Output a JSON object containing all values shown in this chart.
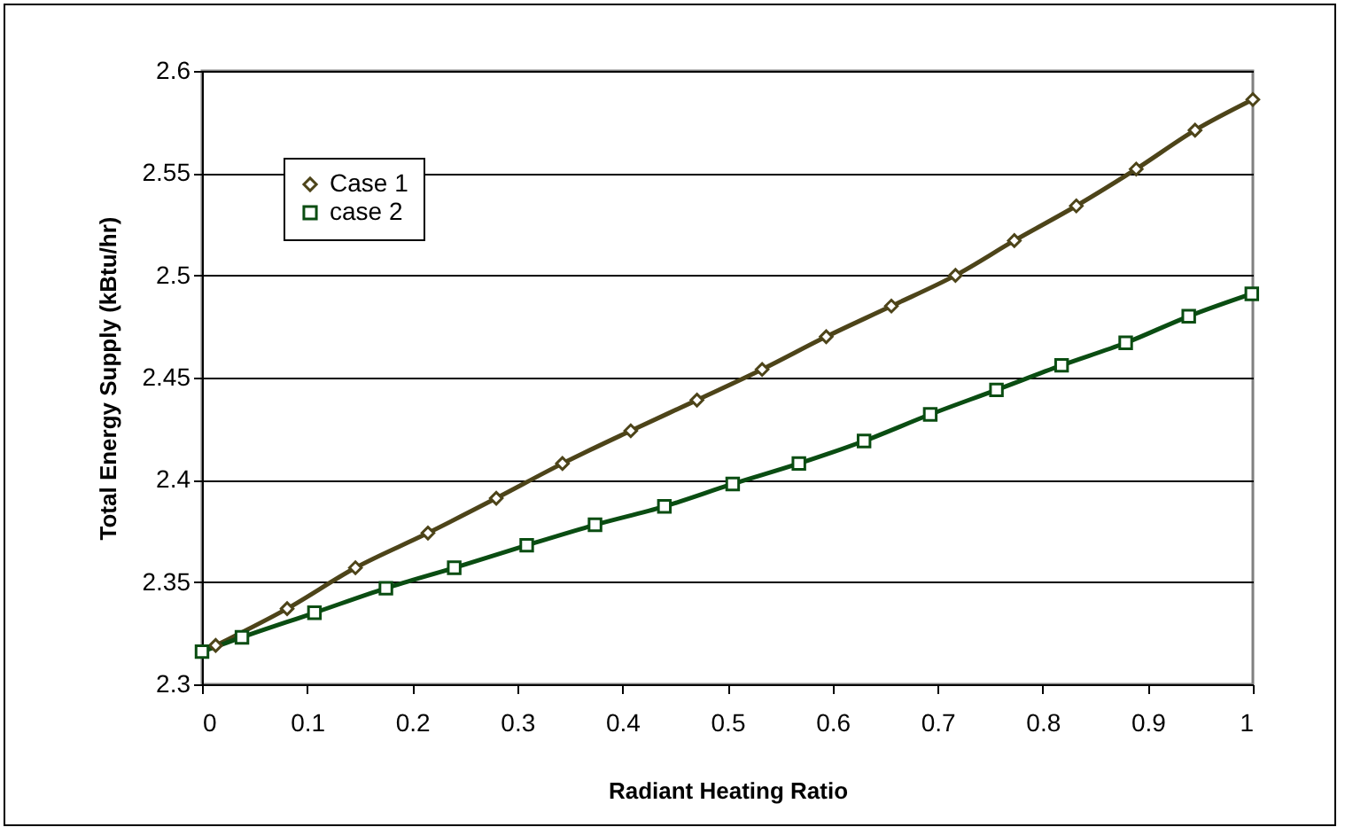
{
  "chart_data": {
    "type": "line",
    "xlabel": "Radiant Heating Ratio",
    "ylabel": "Total Energy Supply (kBtu/hr)",
    "xlim": [
      0,
      1
    ],
    "xticks": [
      0,
      0.1,
      0.2,
      0.3,
      0.4,
      0.5,
      0.6,
      0.7,
      0.8,
      0.9,
      1
    ],
    "ylim": [
      2.3,
      2.6
    ],
    "yticks": [
      2.3,
      2.35,
      2.4,
      2.45,
      2.5,
      2.55,
      2.6
    ],
    "grid": "y",
    "legend": "top left",
    "line_style": "solid",
    "series": [
      {
        "name": "Case 1",
        "color": "#4d4419",
        "marker": "diamond",
        "x": [
          0.013,
          0.081,
          0.146,
          0.215,
          0.28,
          0.343,
          0.408,
          0.471,
          0.533,
          0.594,
          0.656,
          0.717,
          0.773,
          0.832,
          0.889,
          0.945,
          1.0
        ],
        "values": [
          2.319,
          2.337,
          2.357,
          2.374,
          2.391,
          2.408,
          2.424,
          2.439,
          2.454,
          2.47,
          2.485,
          2.5,
          2.517,
          2.534,
          2.552,
          2.571,
          2.586
        ]
      },
      {
        "name": "case 2",
        "color": "#0a4d12",
        "marker": "square",
        "x": [
          0.0,
          0.038,
          0.107,
          0.175,
          0.24,
          0.309,
          0.374,
          0.44,
          0.505,
          0.568,
          0.63,
          0.693,
          0.756,
          0.818,
          0.879,
          0.939,
          0.999
        ],
        "values": [
          2.316,
          2.323,
          2.335,
          2.347,
          2.357,
          2.368,
          2.378,
          2.387,
          2.398,
          2.408,
          2.419,
          2.432,
          2.444,
          2.456,
          2.467,
          2.48,
          2.491
        ]
      }
    ]
  }
}
